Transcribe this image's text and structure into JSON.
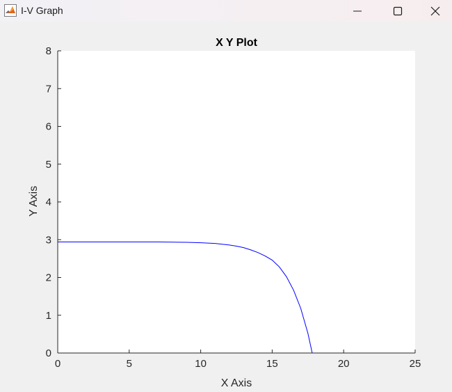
{
  "window": {
    "title": "I-V Graph",
    "icon": "matlab-icon",
    "controls": {
      "minimize": "minimize-icon",
      "maximize": "maximize-icon",
      "close": "close-icon"
    }
  },
  "chart_data": {
    "type": "line",
    "title": "X Y Plot",
    "xlabel": "X Axis",
    "ylabel": "Y Axis",
    "xlim": [
      0,
      25
    ],
    "ylim": [
      0,
      8
    ],
    "xticks": [
      0,
      5,
      10,
      15,
      20,
      25
    ],
    "yticks": [
      0,
      1,
      2,
      3,
      4,
      5,
      6,
      7,
      8
    ],
    "grid": false,
    "line_color": "#0000ff",
    "series": [
      {
        "x": [
          0,
          1,
          2,
          3,
          4,
          5,
          6,
          7,
          8,
          9,
          10,
          10.5,
          11,
          11.5,
          12,
          12.5,
          13,
          13.5,
          14,
          14.5,
          15,
          15.5,
          16,
          16.5,
          17,
          17.5,
          17.8
        ],
        "y": [
          2.94,
          2.94,
          2.94,
          2.94,
          2.94,
          2.94,
          2.94,
          2.94,
          2.935,
          2.93,
          2.92,
          2.91,
          2.9,
          2.88,
          2.86,
          2.83,
          2.79,
          2.73,
          2.66,
          2.57,
          2.46,
          2.28,
          2.02,
          1.66,
          1.18,
          0.52,
          0.0
        ]
      }
    ]
  }
}
